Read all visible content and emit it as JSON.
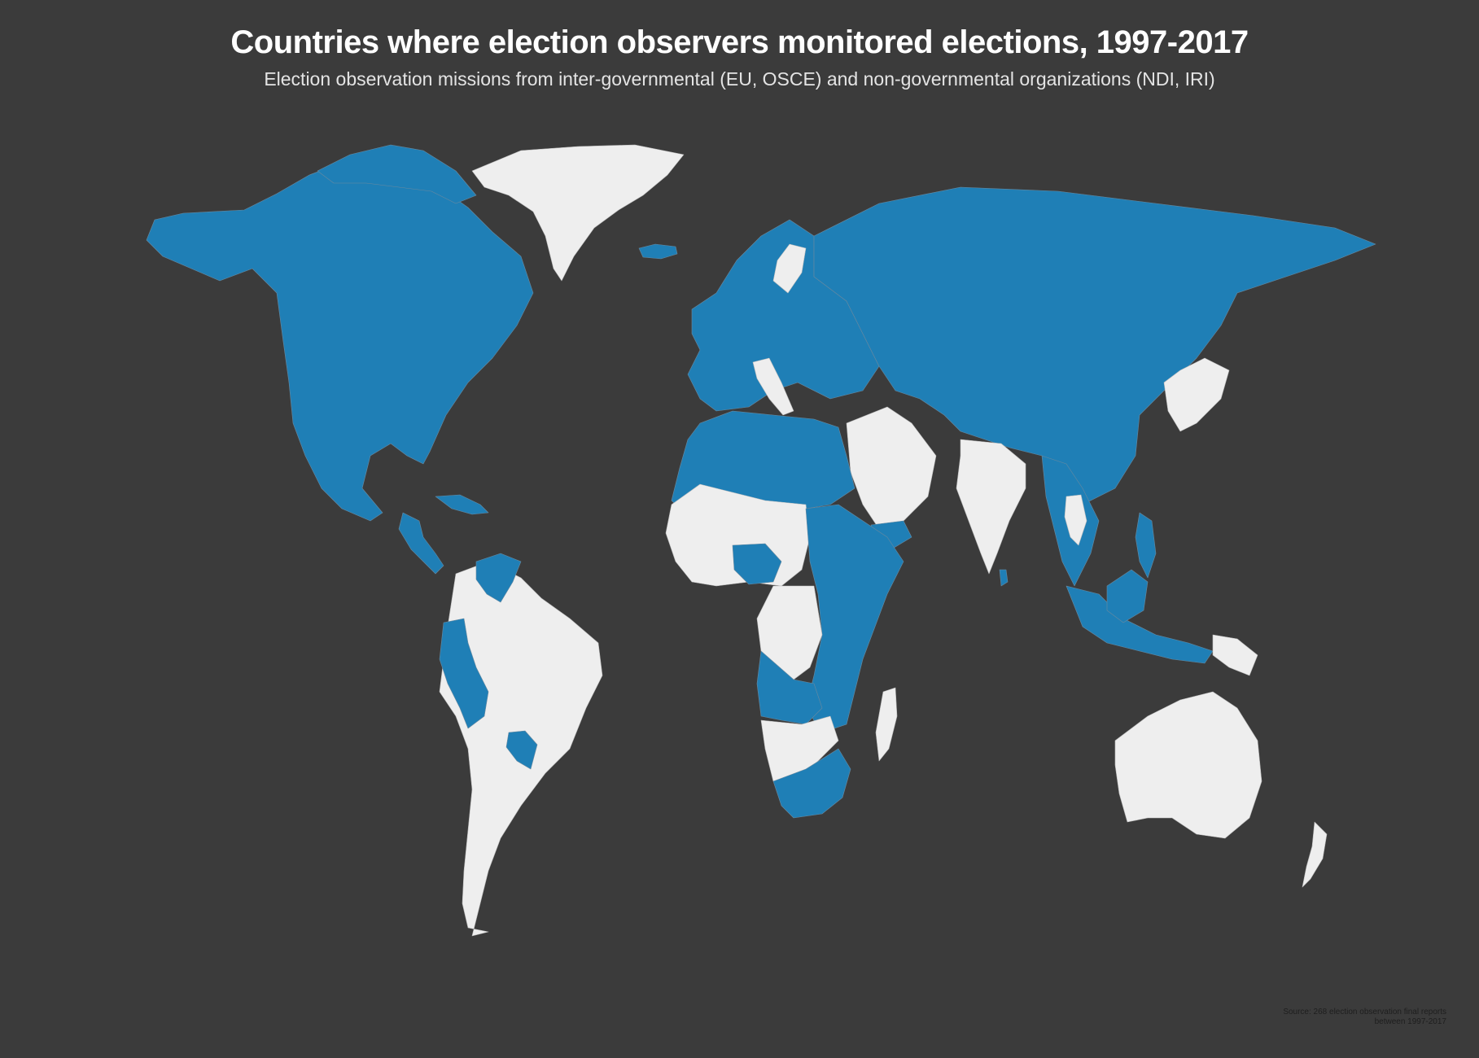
{
  "title": "Countries where election observers monitored elections, 1997-2017",
  "subtitle": "Election observation missions from inter-governmental (EU, OSCE) and non-governmental organizations (NDI, IRI)",
  "source_line1": "Source: 268 election observation final reports",
  "source_line2": "between 1997-2017",
  "colors": {
    "background": "#3b3b3b",
    "monitored": "#1f7fb6",
    "not_monitored": "#eeeeee"
  },
  "map": {
    "projection": "miller-world",
    "regions": [
      {
        "name": "North America",
        "monitored": true
      },
      {
        "name": "Greenland",
        "monitored": false
      },
      {
        "name": "Central America",
        "monitored": true
      },
      {
        "name": "Caribbean",
        "monitored": true
      },
      {
        "name": "Venezuela",
        "monitored": true
      },
      {
        "name": "Peru / Ecuador / Bolivia",
        "monitored": true
      },
      {
        "name": "Paraguay",
        "monitored": true
      },
      {
        "name": "Brazil / Argentina / Chile",
        "monitored": false
      },
      {
        "name": "Europe",
        "monitored": true
      },
      {
        "name": "Iceland",
        "monitored": true
      },
      {
        "name": "Russia / Central Asia / China",
        "monitored": true
      },
      {
        "name": "North Africa",
        "monitored": true
      },
      {
        "name": "West Africa",
        "monitored": false
      },
      {
        "name": "Nigeria",
        "monitored": true
      },
      {
        "name": "East Africa",
        "monitored": true
      },
      {
        "name": "Central Africa",
        "monitored": false
      },
      {
        "name": "Angola / Zambia",
        "monitored": true
      },
      {
        "name": "Southern Africa",
        "monitored": true
      },
      {
        "name": "Namibia / Botswana",
        "monitored": false
      },
      {
        "name": "Madagascar",
        "monitored": false
      },
      {
        "name": "Arabian Peninsula",
        "monitored": false
      },
      {
        "name": "Yemen",
        "monitored": true
      },
      {
        "name": "India",
        "monitored": false
      },
      {
        "name": "Southeast Asia mainland",
        "monitored": true
      },
      {
        "name": "Indonesia / Philippines",
        "monitored": true
      },
      {
        "name": "Korea / Japan",
        "monitored": false
      },
      {
        "name": "Australia",
        "monitored": false
      },
      {
        "name": "New Zealand",
        "monitored": false
      },
      {
        "name": "Papua New Guinea",
        "monitored": false
      }
    ]
  }
}
